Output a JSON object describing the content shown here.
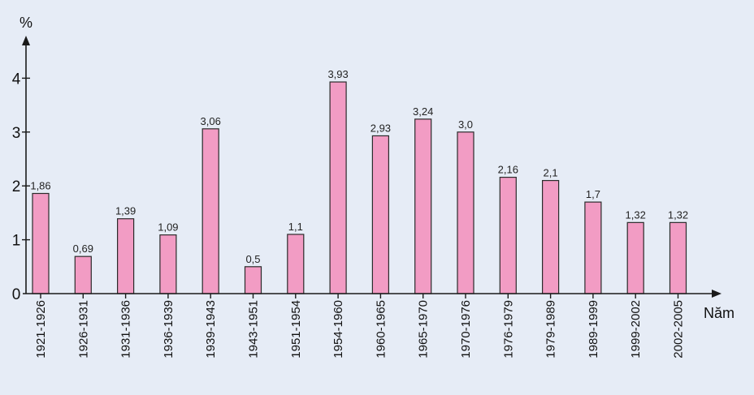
{
  "chart_data": {
    "type": "bar",
    "categories": [
      "1921-1926",
      "1926-1931",
      "1931-1936",
      "1936-1939",
      "1939-1943",
      "1943-1951",
      "1951-1954",
      "1954-1960",
      "1960-1965",
      "1965-1970",
      "1970-1976",
      "1976-1979",
      "1979-1989",
      "1989-1999",
      "1999-2002",
      "2002-2005"
    ],
    "values": [
      1.86,
      0.69,
      1.39,
      1.09,
      3.06,
      0.5,
      1.1,
      3.93,
      2.93,
      3.24,
      3.0,
      2.16,
      2.1,
      1.7,
      1.32,
      1.32
    ],
    "data_labels": [
      "1,86",
      "0,69",
      "1,39",
      "1,09",
      "3,06",
      "0,5",
      "1,1",
      "3,93",
      "2,93",
      "3,24",
      "3,0",
      "2,16",
      "2,1",
      "1,7",
      "1,32",
      "1,32"
    ],
    "xlabel": "Năm",
    "ylabel": "%",
    "yticks": [
      "0",
      "1",
      "2",
      "3",
      "4"
    ],
    "ylim": [
      0,
      4.8
    ],
    "grid": false,
    "bar_color": "#f29cc4",
    "background_color": "#e6ecf6"
  }
}
